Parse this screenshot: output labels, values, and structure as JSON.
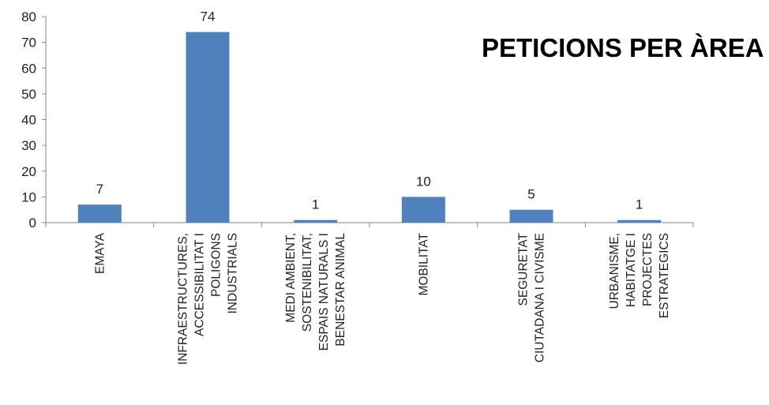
{
  "chart_data": {
    "type": "bar",
    "title": "PETICIONS PER ÀREA",
    "categories": [
      [
        "EMAYA"
      ],
      [
        "INFRAESTRUCTURES,",
        "ACCESSIBILITAT I",
        "POLIGONS",
        "INDUSTRIALS"
      ],
      [
        "MEDI AMBIENT,",
        "SOSTENIBILITAT,",
        "ESPAIS NATURALS I",
        "BENESTAR ANIMAL"
      ],
      [
        "MOBILITAT"
      ],
      [
        "SEGURETAT",
        "CIUTADANA I CIVISME"
      ],
      [
        "URBANISME,",
        "HABITATGE I",
        "PROJECTES",
        "ESTRATEGICS"
      ]
    ],
    "values": [
      7,
      74,
      1,
      10,
      5,
      1
    ],
    "data_labels": [
      "7",
      "74",
      "1",
      "10",
      "5",
      "1"
    ],
    "yticks": [
      "0",
      "10",
      "20",
      "30",
      "40",
      "50",
      "60",
      "70",
      "80"
    ],
    "ylim": [
      0,
      80
    ],
    "bar_color": "#4F81BD",
    "grid": false,
    "legend": "none"
  }
}
